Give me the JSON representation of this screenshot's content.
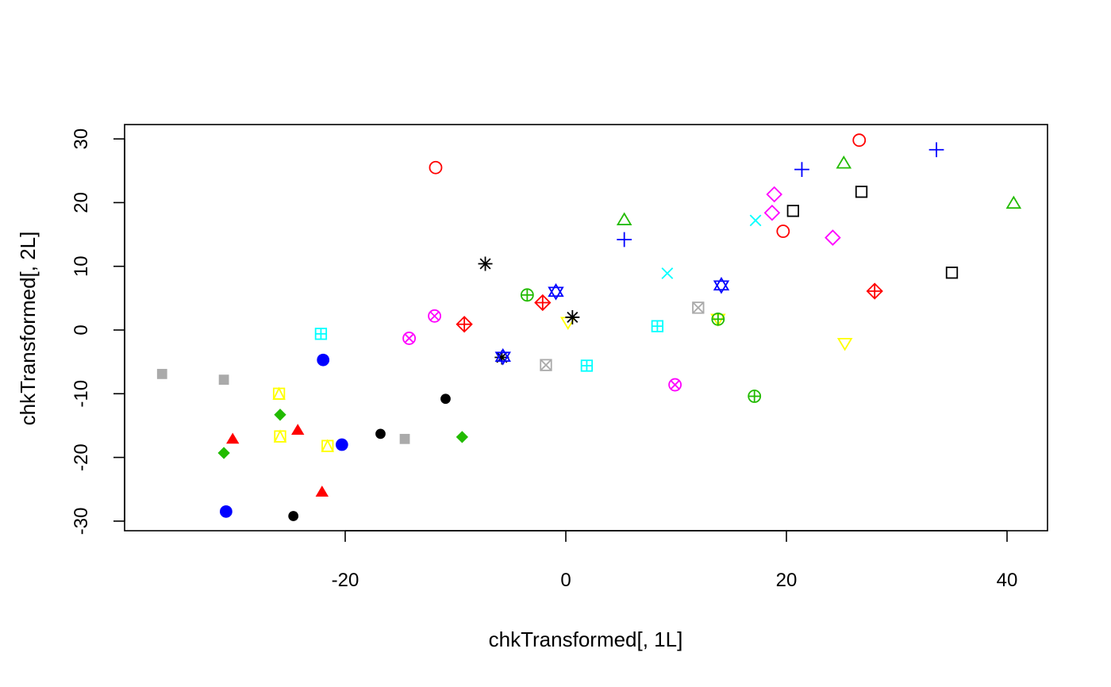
{
  "chart_data": {
    "type": "scatter",
    "title": "",
    "xlabel": "chkTransformed[, 1L]",
    "ylabel": "chkTransformed[, 2L]",
    "xlim": [
      -40,
      43
    ],
    "ylim": [
      -32,
      32
    ],
    "xticks": [
      "-20",
      "0",
      "20",
      "40"
    ],
    "xtick_values": [
      -20,
      0,
      20,
      40
    ],
    "yticks": [
      "-30",
      "-20",
      "-10",
      "0",
      "10",
      "20",
      "30"
    ],
    "ytick_values": [
      -30,
      -20,
      -10,
      0,
      10,
      20,
      30
    ],
    "grid": false,
    "legend": "none",
    "points": [
      {
        "x": -11.8,
        "y": 25.5,
        "symbol": "circle",
        "color": "#FF0000"
      },
      {
        "x": 26.6,
        "y": 29.8,
        "symbol": "circle",
        "color": "#FF0000"
      },
      {
        "x": 19.7,
        "y": 15.5,
        "symbol": "circle",
        "color": "#FF0000"
      },
      {
        "x": 25.2,
        "y": 26.1,
        "symbol": "triangle",
        "color": "#22BB00"
      },
      {
        "x": 40.6,
        "y": 19.8,
        "symbol": "triangle",
        "color": "#22BB00"
      },
      {
        "x": 5.3,
        "y": 17.2,
        "symbol": "triangle",
        "color": "#22BB00"
      },
      {
        "x": 21.4,
        "y": 25.2,
        "symbol": "plus",
        "color": "#0000FF"
      },
      {
        "x": 33.6,
        "y": 28.3,
        "symbol": "plus",
        "color": "#0000FF"
      },
      {
        "x": 5.3,
        "y": 14.2,
        "symbol": "plus",
        "color": "#0000FF"
      },
      {
        "x": 17.2,
        "y": 17.2,
        "symbol": "x",
        "color": "#00FFFF"
      },
      {
        "x": 9.2,
        "y": 8.9,
        "symbol": "x",
        "color": "#00FFFF"
      },
      {
        "x": 18.9,
        "y": 21.3,
        "symbol": "diamond",
        "color": "#FF00FF"
      },
      {
        "x": 18.7,
        "y": 18.4,
        "symbol": "diamond",
        "color": "#FF00FF"
      },
      {
        "x": 24.2,
        "y": 14.5,
        "symbol": "diamond",
        "color": "#FF00FF"
      },
      {
        "x": 0.2,
        "y": 1.3,
        "symbol": "triangle-down",
        "color": "#FFFF00"
      },
      {
        "x": 25.3,
        "y": -2.0,
        "symbol": "triangle-down",
        "color": "#FFFF00"
      },
      {
        "x": 13.8,
        "y": 1.8,
        "symbol": "triangle-down",
        "color": "#FFFF00"
      },
      {
        "x": 26.8,
        "y": 21.7,
        "symbol": "square",
        "color": "#000000"
      },
      {
        "x": 20.6,
        "y": 18.7,
        "symbol": "square",
        "color": "#000000"
      },
      {
        "x": 35.0,
        "y": 9.0,
        "symbol": "square",
        "color": "#000000"
      },
      {
        "x": 12.0,
        "y": 3.5,
        "symbol": "square-x",
        "color": "#AAAAAA"
      },
      {
        "x": -1.8,
        "y": -5.5,
        "symbol": "square-x",
        "color": "#AAAAAA"
      },
      {
        "x": -7.3,
        "y": 10.4,
        "symbol": "asterisk",
        "color": "#000000"
      },
      {
        "x": 0.6,
        "y": 2.0,
        "symbol": "asterisk",
        "color": "#000000"
      },
      {
        "x": -5.8,
        "y": -4.3,
        "symbol": "asterisk",
        "color": "#000000"
      },
      {
        "x": -2.1,
        "y": 4.3,
        "symbol": "diamond-plus",
        "color": "#FF0000"
      },
      {
        "x": -9.2,
        "y": 0.9,
        "symbol": "diamond-plus",
        "color": "#FF0000"
      },
      {
        "x": 28.0,
        "y": 6.1,
        "symbol": "diamond-plus",
        "color": "#FF0000"
      },
      {
        "x": -3.5,
        "y": 5.5,
        "symbol": "circle-plus",
        "color": "#22BB00"
      },
      {
        "x": 13.8,
        "y": 1.7,
        "symbol": "circle-plus",
        "color": "#22BB00"
      },
      {
        "x": 17.1,
        "y": -10.4,
        "symbol": "circle-plus",
        "color": "#22BB00"
      },
      {
        "x": -0.9,
        "y": 6.0,
        "symbol": "star-of-david",
        "color": "#0000FF"
      },
      {
        "x": 14.1,
        "y": 7.0,
        "symbol": "star-of-david",
        "color": "#0000FF"
      },
      {
        "x": -5.7,
        "y": -4.2,
        "symbol": "star-of-david",
        "color": "#0000FF"
      },
      {
        "x": -22.2,
        "y": -0.6,
        "symbol": "square-plus",
        "color": "#00FFFF"
      },
      {
        "x": 8.3,
        "y": 0.6,
        "symbol": "square-plus",
        "color": "#00FFFF"
      },
      {
        "x": 1.9,
        "y": -5.6,
        "symbol": "square-plus",
        "color": "#00FFFF"
      },
      {
        "x": -11.9,
        "y": 2.2,
        "symbol": "circle-x",
        "color": "#FF00FF"
      },
      {
        "x": -14.2,
        "y": -1.3,
        "symbol": "circle-x",
        "color": "#FF00FF"
      },
      {
        "x": 9.9,
        "y": -8.6,
        "symbol": "circle-x",
        "color": "#FF00FF"
      },
      {
        "x": -26.0,
        "y": -10.0,
        "symbol": "square-triangle",
        "color": "#FFFF00"
      },
      {
        "x": -25.9,
        "y": -16.7,
        "symbol": "square-triangle",
        "color": "#FFFF00"
      },
      {
        "x": -21.6,
        "y": -18.2,
        "symbol": "square-triangle",
        "color": "#FFFF00"
      },
      {
        "x": -36.6,
        "y": -6.9,
        "symbol": "filled-square",
        "color": "#AAAAAA"
      },
      {
        "x": -31.0,
        "y": -7.8,
        "symbol": "filled-square",
        "color": "#AAAAAA"
      },
      {
        "x": -14.6,
        "y": -17.1,
        "symbol": "filled-square",
        "color": "#AAAAAA"
      },
      {
        "x": -10.9,
        "y": -10.8,
        "symbol": "filled-circle",
        "color": "#000000"
      },
      {
        "x": -16.8,
        "y": -16.3,
        "symbol": "filled-circle",
        "color": "#000000"
      },
      {
        "x": -24.7,
        "y": -29.2,
        "symbol": "filled-circle",
        "color": "#000000"
      },
      {
        "x": -30.2,
        "y": -17.2,
        "symbol": "filled-triangle",
        "color": "#FF0000"
      },
      {
        "x": -24.3,
        "y": -15.8,
        "symbol": "filled-triangle",
        "color": "#FF0000"
      },
      {
        "x": -22.1,
        "y": -25.5,
        "symbol": "filled-triangle",
        "color": "#FF0000"
      },
      {
        "x": -25.9,
        "y": -13.3,
        "symbol": "filled-diamond",
        "color": "#22BB00"
      },
      {
        "x": -31.0,
        "y": -19.3,
        "symbol": "filled-diamond",
        "color": "#22BB00"
      },
      {
        "x": -9.4,
        "y": -16.8,
        "symbol": "filled-diamond",
        "color": "#22BB00"
      },
      {
        "x": -22.0,
        "y": -4.7,
        "symbol": "filled-big-circle",
        "color": "#0000FF"
      },
      {
        "x": -20.3,
        "y": -18.0,
        "symbol": "filled-big-circle",
        "color": "#0000FF"
      },
      {
        "x": -30.8,
        "y": -28.5,
        "symbol": "filled-big-circle",
        "color": "#0000FF"
      }
    ]
  }
}
